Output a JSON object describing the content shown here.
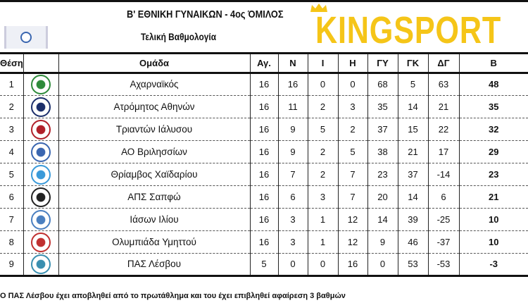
{
  "header": {
    "title": "Β' ΕΘΝΙΚΗ ΓΥΝΑΙΚΩΝ - 4ος ΌΜΙΛΟΣ",
    "subtitle": "Τελική Βαθμολογία",
    "brand": "KINGSPORT",
    "brand_color": "#f5c518"
  },
  "columns": [
    "Θέση",
    "",
    "Ομάδα",
    "Αγ.",
    "Ν",
    "Ι",
    "Η",
    "ΓΥ",
    "ΓΚ",
    "ΔΓ",
    "Β"
  ],
  "rows": [
    {
      "pos": "1",
      "team": "Αχαρναϊκός",
      "p": "16",
      "w": "16",
      "d": "0",
      "l": "0",
      "gf": "68",
      "ga": "5",
      "gd": "63",
      "pts": "48",
      "logo_color": "#2e8b3a"
    },
    {
      "pos": "2",
      "team": "Ατρόμητος Αθηνών",
      "p": "16",
      "w": "11",
      "d": "2",
      "l": "3",
      "gf": "35",
      "ga": "14",
      "gd": "21",
      "pts": "35",
      "logo_color": "#1c2f6b"
    },
    {
      "pos": "3",
      "team": "Τριαντών Ιάλυσου",
      "p": "16",
      "w": "9",
      "d": "5",
      "l": "2",
      "gf": "37",
      "ga": "15",
      "gd": "22",
      "pts": "32",
      "logo_color": "#b0202a"
    },
    {
      "pos": "4",
      "team": "ΑΟ Βριλησσίων",
      "p": "16",
      "w": "9",
      "d": "2",
      "l": "5",
      "gf": "38",
      "ga": "21",
      "gd": "17",
      "pts": "29",
      "logo_color": "#3a66b0"
    },
    {
      "pos": "5",
      "team": "Θρίαμβος Χαϊδαρίου",
      "p": "16",
      "w": "7",
      "d": "2",
      "l": "7",
      "gf": "23",
      "ga": "37",
      "gd": "-14",
      "pts": "23",
      "logo_color": "#3a9ad9"
    },
    {
      "pos": "6",
      "team": "ΑΠΣ Σαπφώ",
      "p": "16",
      "w": "6",
      "d": "3",
      "l": "7",
      "gf": "20",
      "ga": "14",
      "gd": "6",
      "pts": "21",
      "logo_color": "#222222"
    },
    {
      "pos": "7",
      "team": "Ιάσων Ιλίου",
      "p": "16",
      "w": "3",
      "d": "1",
      "l": "12",
      "gf": "14",
      "ga": "39",
      "gd": "-25",
      "pts": "10",
      "logo_color": "#4a7fc0"
    },
    {
      "pos": "8",
      "team": "Ολυμπιάδα Υμηττού",
      "p": "16",
      "w": "3",
      "d": "1",
      "l": "12",
      "gf": "9",
      "ga": "46",
      "gd": "-37",
      "pts": "10",
      "logo_color": "#c03030"
    },
    {
      "pos": "9",
      "team": "ΠΑΣ Λέσβου",
      "p": "5",
      "w": "0",
      "d": "0",
      "l": "16",
      "gf": "0",
      "ga": "53",
      "gd": "-53",
      "pts": "-3",
      "logo_color": "#3a8fb0"
    }
  ],
  "footnote": "Ο ΠΑΣ Λέσβου έχει αποβληθεί από το πρωτάθλημα και του έχει επιβληθεί αφαίρεση 3 βαθμών"
}
